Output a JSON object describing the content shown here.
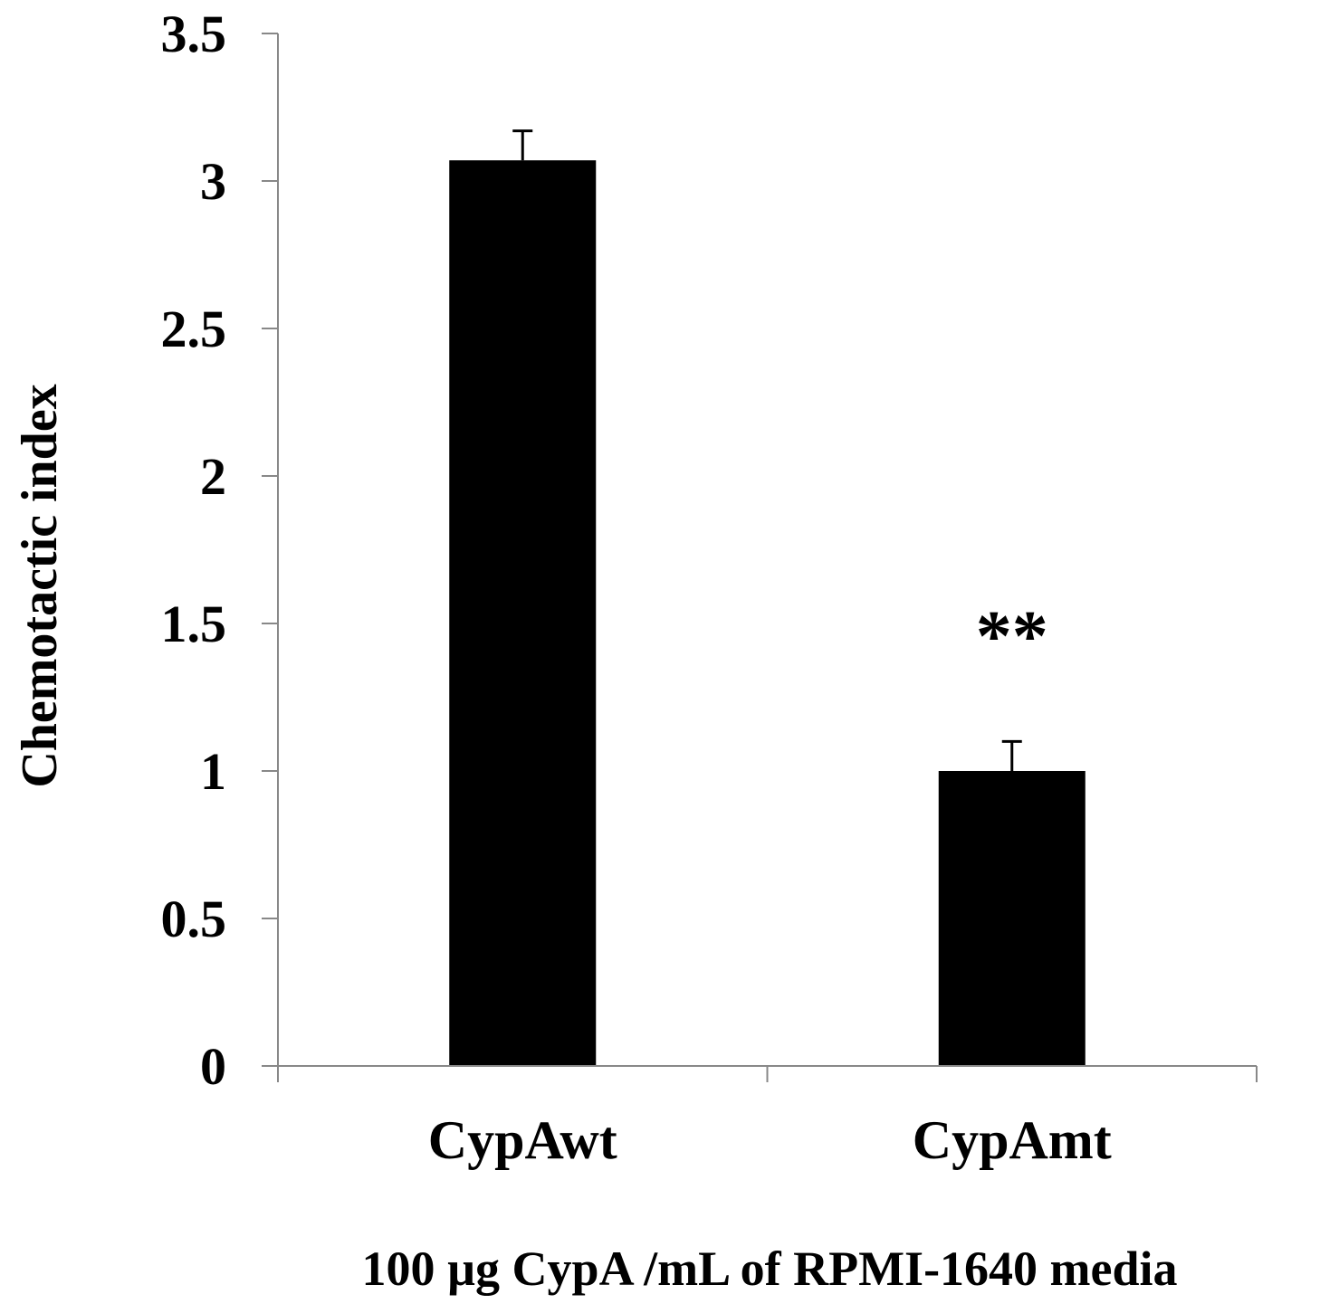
{
  "chart_data": {
    "type": "bar",
    "categories": [
      "CypAwt",
      "CypAmt"
    ],
    "values": [
      3.07,
      1.0
    ],
    "error": [
      0.1,
      0.1
    ],
    "annotations": [
      {
        "category": "CypAmt",
        "text": "**"
      }
    ],
    "xlabel": "100 µg CypA /mL of RPMI-1640 media",
    "ylabel": "Chemotactic index",
    "ylim": [
      0,
      3.5
    ],
    "yticks": [
      "0",
      "0.5",
      "1",
      "1.5",
      "2",
      "2.5",
      "3",
      "3.5"
    ],
    "grid": false,
    "legend": "none",
    "bar_color": "#000000",
    "axis_color": "#888888"
  }
}
